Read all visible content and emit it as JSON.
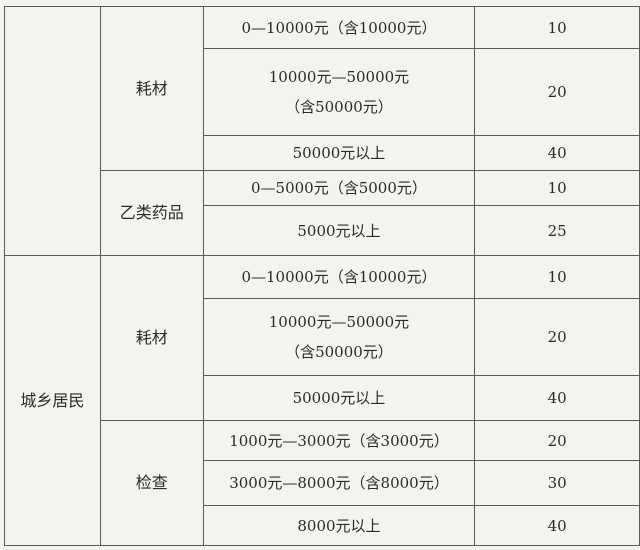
{
  "table": {
    "group_top": "",
    "group_bottom": "城乡居民",
    "categories": [
      "耗材",
      "乙类药品",
      "耗材",
      "检查"
    ],
    "rows": [
      {
        "range": "0—10000元（含10000元）",
        "value": "10"
      },
      {
        "range": "10000元—50000元",
        "range2": "（含50000元）",
        "value": "20"
      },
      {
        "range": "50000元以上",
        "value": "40"
      },
      {
        "range": "0—5000元（含5000元）",
        "value": "10"
      },
      {
        "range": "5000元以上",
        "value": "25"
      },
      {
        "range": "0—10000元（含10000元）",
        "value": "10"
      },
      {
        "range": "10000元—50000元",
        "range2": "（含50000元）",
        "value": "20"
      },
      {
        "range": "50000元以上",
        "value": "40"
      },
      {
        "range": "1000元—3000元（含3000元）",
        "value": "20"
      },
      {
        "range": "3000元—8000元（含8000元）",
        "value": "30"
      },
      {
        "range": "8000元以上",
        "value": "40"
      }
    ]
  }
}
